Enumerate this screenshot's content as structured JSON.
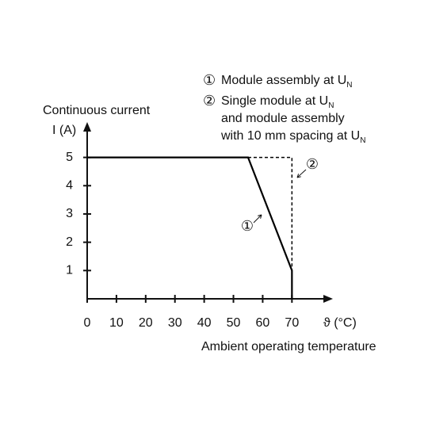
{
  "chart_data": {
    "type": "line",
    "y_title": "Continuous current",
    "ylabel": "I (A)",
    "xlabel": "ϑ (°C)",
    "x_title": "Ambient operating temperature",
    "series": [
      {
        "name": "①",
        "color": "#000000",
        "style": "solid",
        "x": [
          0,
          55,
          70,
          70
        ],
        "values": [
          5,
          5,
          1,
          0
        ]
      },
      {
        "name": "②",
        "color": "#000000",
        "style": "dashed",
        "x": [
          55,
          70,
          70
        ],
        "values": [
          5,
          5,
          1
        ]
      }
    ],
    "legend": [
      {
        "lines": [
          {
            "text": "Module assembly at U",
            "sub": "N"
          }
        ]
      },
      {
        "lines": [
          {
            "text": "Single module at U",
            "sub": "N"
          },
          {
            "text": "and module assembly"
          },
          {
            "text": "with 10 mm spacing at U",
            "sub": "N"
          }
        ]
      }
    ],
    "xlim": [
      0,
      84
    ],
    "xticks": [
      0,
      10,
      20,
      30,
      40,
      50,
      60,
      70
    ],
    "ylim": [
      0,
      6.25
    ],
    "yticks": [
      1,
      2,
      3,
      4,
      5
    ]
  }
}
